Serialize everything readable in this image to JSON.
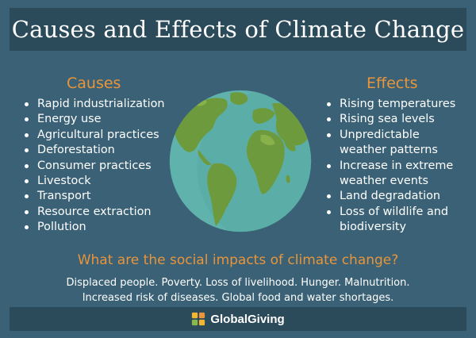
{
  "title": "Causes and Effects of Climate Change",
  "causes": {
    "heading": "Causes",
    "items": [
      "Rapid industrialization",
      "Energy use",
      "Agricultural practices",
      "Deforestation",
      "Consumer practices",
      "Livestock",
      "Transport",
      "Resource extraction",
      "Pollution"
    ]
  },
  "effects": {
    "heading": "Effects",
    "items": [
      "Rising temperatures",
      "Rising sea levels",
      "Unpredictable",
      "weather patterns",
      "Increase in extreme",
      "weather events",
      "Land degradation",
      "Loss of wildlife and",
      "biodiversity"
    ]
  },
  "social": {
    "question": "What are the social impacts of climate change?",
    "line1": "Displaced people. Poverty. Loss of livelihood. Hunger. Malnutrition.",
    "line2": "Increased risk of diseases. Global food and water shortages."
  },
  "footer": {
    "brand": "GlobalGiving"
  },
  "colors": {
    "background": "#3a6175",
    "banner": "#2b4a5a",
    "accent": "#e8953b",
    "ocean": "#5fb3ac",
    "land": "#6e9a3e"
  },
  "icons": {
    "globe": "earth-globe-icon",
    "logo": "globalgiving-logo-icon"
  }
}
